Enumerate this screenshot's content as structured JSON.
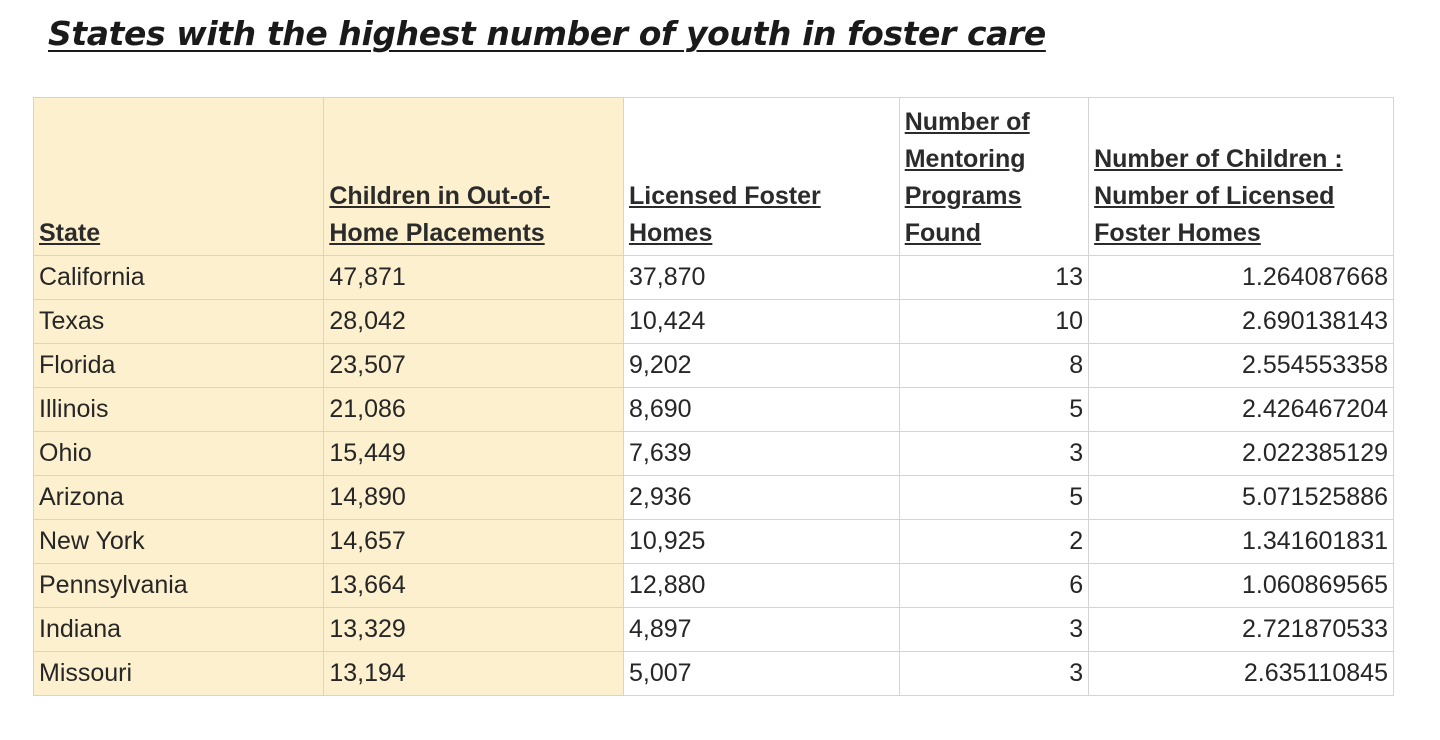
{
  "title": "States with the highest number of youth in foster care",
  "table": {
    "headers": [
      "State",
      "Children in Out-of-Home Placements",
      "Licensed Foster Homes",
      "Number of Mentoring Programs Found",
      "Number of Children : Number of Licensed Foster Homes"
    ],
    "rows": [
      [
        "California",
        "47,871",
        "37,870",
        "13",
        "1.264087668"
      ],
      [
        "Texas",
        "28,042",
        "10,424",
        "10",
        "2.690138143"
      ],
      [
        "Florida",
        "23,507",
        "9,202",
        "8",
        "2.554553358"
      ],
      [
        "Illinois",
        "21,086",
        "8,690",
        "5",
        "2.426467204"
      ],
      [
        "Ohio",
        "15,449",
        "7,639",
        "3",
        "2.022385129"
      ],
      [
        "Arizona",
        "14,890",
        "2,936",
        "5",
        "5.071525886"
      ],
      [
        "New York",
        "14,657",
        "10,925",
        "2",
        "1.341601831"
      ],
      [
        "Pennsylvania",
        "13,664",
        "12,880",
        "6",
        "1.060869565"
      ],
      [
        "Indiana",
        "13,329",
        "4,897",
        "3",
        "2.721870533"
      ],
      [
        "Missouri",
        "13,194",
        "5,007",
        "3",
        "2.635110845"
      ]
    ]
  },
  "colors": {
    "highlight_column_fill": "#fcf0cf",
    "grid_line": "#d4d4d4"
  }
}
